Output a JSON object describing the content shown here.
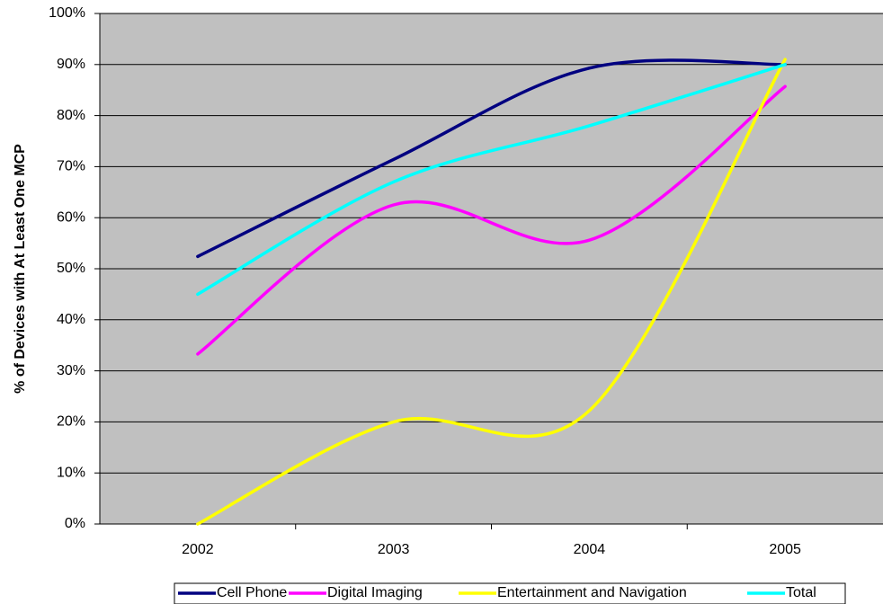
{
  "chart_data": {
    "type": "line",
    "title": "",
    "xlabel": "",
    "ylabel": "% of Devices with At Least One MCP",
    "categories": [
      "2002",
      "2003",
      "2004",
      "2005"
    ],
    "ylim": [
      0,
      100
    ],
    "yticks": [
      0,
      10,
      20,
      30,
      40,
      50,
      60,
      70,
      80,
      90,
      100
    ],
    "ytick_suffix": "%",
    "grid": true,
    "legend_position": "bottom",
    "series": [
      {
        "name": "Cell Phone",
        "color": "#000080",
        "values": [
          52.4,
          71.4,
          89.3,
          90.0
        ]
      },
      {
        "name": "Digital Imaging",
        "color": "#FF00FF",
        "values": [
          33.3,
          62.5,
          55.6,
          85.7
        ]
      },
      {
        "name": "Entertainment and Navigation",
        "color": "#FFFF00",
        "values": [
          0,
          20.0,
          22.2,
          91.0
        ]
      },
      {
        "name": "Total",
        "color": "#00FFFF",
        "values": [
          45.0,
          67.0,
          78.0,
          90.0
        ]
      }
    ],
    "plot_background": "#C0C0C0",
    "gridline_color": "#000000"
  }
}
